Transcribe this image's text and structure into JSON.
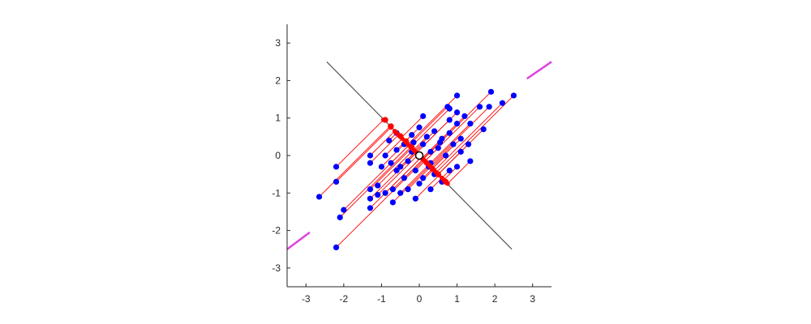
{
  "chart_data": {
    "type": "scatter",
    "title": "",
    "xlabel": "",
    "ylabel": "",
    "xlim": [
      -3.5,
      3.5
    ],
    "ylim": [
      -3.5,
      3.5
    ],
    "xticks": [
      "-3",
      "-2",
      "-1",
      "0",
      "1",
      "2",
      "3"
    ],
    "yticks": [
      "-3",
      "-2",
      "-1",
      "0",
      "1",
      "2",
      "3"
    ],
    "grid": false,
    "legend": "none",
    "colors": {
      "points": "#0000ff",
      "projections": "#ff0000",
      "projection_lines": "#ff0000",
      "perpendicular_axis": "#555555",
      "principal_axis": "#e040e0",
      "mean": "#ffffff"
    },
    "principal_axis": {
      "segments": [
        {
          "x": [
            -3.5,
            -2.9
          ],
          "y": [
            -2.5,
            -2.05
          ]
        },
        {
          "x": [
            2.85,
            3.5
          ],
          "y": [
            2.05,
            2.5
          ]
        }
      ]
    },
    "perpendicular_axis": {
      "x": [
        -2.45,
        2.45
      ],
      "y": [
        2.5,
        -2.5
      ]
    },
    "mean": {
      "x": 0.0,
      "y": 0.0
    },
    "points": [
      {
        "x": -2.2,
        "y": -2.45
      },
      {
        "x": -2.65,
        "y": -1.1
      },
      {
        "x": -2.1,
        "y": -1.65
      },
      {
        "x": -2.0,
        "y": -1.45
      },
      {
        "x": -2.2,
        "y": -0.7
      },
      {
        "x": -2.2,
        "y": -0.3
      },
      {
        "x": -1.3,
        "y": -1.4
      },
      {
        "x": -1.3,
        "y": -1.15
      },
      {
        "x": -1.3,
        "y": -0.9
      },
      {
        "x": -1.1,
        "y": -1.05
      },
      {
        "x": -1.1,
        "y": -0.8
      },
      {
        "x": -0.9,
        "y": -1.0
      },
      {
        "x": -0.7,
        "y": -1.25
      },
      {
        "x": -0.7,
        "y": -0.9
      },
      {
        "x": -0.5,
        "y": -1.0
      },
      {
        "x": -0.3,
        "y": -0.9
      },
      {
        "x": -0.1,
        "y": -1.15
      },
      {
        "x": 0.0,
        "y": -0.75
      },
      {
        "x": 0.3,
        "y": -0.9
      },
      {
        "x": -1.3,
        "y": -0.2
      },
      {
        "x": -1.3,
        "y": 0.0
      },
      {
        "x": -1.0,
        "y": -0.3
      },
      {
        "x": -0.9,
        "y": 0.0
      },
      {
        "x": -0.75,
        "y": -0.2
      },
      {
        "x": -0.6,
        "y": -0.4
      },
      {
        "x": -0.4,
        "y": -0.6
      },
      {
        "x": -0.3,
        "y": -0.15
      },
      {
        "x": -0.1,
        "y": -0.4
      },
      {
        "x": 0.1,
        "y": -0.6
      },
      {
        "x": 0.25,
        "y": -0.3
      },
      {
        "x": 0.4,
        "y": -0.5
      },
      {
        "x": 0.6,
        "y": -0.7
      },
      {
        "x": 0.8,
        "y": -0.4
      },
      {
        "x": 1.0,
        "y": -0.3
      },
      {
        "x": 1.35,
        "y": -0.15
      },
      {
        "x": -0.6,
        "y": 0.15
      },
      {
        "x": -0.4,
        "y": 0.3
      },
      {
        "x": -0.2,
        "y": 0.1
      },
      {
        "x": 0.1,
        "y": 0.3
      },
      {
        "x": 0.3,
        "y": 0.1
      },
      {
        "x": 0.5,
        "y": 0.2
      },
      {
        "x": 0.7,
        "y": 0.0
      },
      {
        "x": 0.9,
        "y": 0.3
      },
      {
        "x": 1.1,
        "y": 0.1
      },
      {
        "x": 1.3,
        "y": 0.3
      },
      {
        "x": 1.1,
        "y": 0.45
      },
      {
        "x": -0.6,
        "y": 0.6
      },
      {
        "x": -0.2,
        "y": 0.55
      },
      {
        "x": 0.0,
        "y": 0.75
      },
      {
        "x": 0.1,
        "y": 1.05
      },
      {
        "x": 0.4,
        "y": 0.65
      },
      {
        "x": 0.6,
        "y": 0.45
      },
      {
        "x": 0.8,
        "y": 0.6
      },
      {
        "x": 0.8,
        "y": 0.95
      },
      {
        "x": 0.8,
        "y": 1.25
      },
      {
        "x": 1.0,
        "y": 0.85
      },
      {
        "x": 1.0,
        "y": 1.15
      },
      {
        "x": 1.2,
        "y": 1.05
      },
      {
        "x": 1.35,
        "y": 0.85
      },
      {
        "x": 1.0,
        "y": 1.6
      },
      {
        "x": 1.6,
        "y": 1.3
      },
      {
        "x": 1.9,
        "y": 1.7
      },
      {
        "x": 1.85,
        "y": 1.3
      },
      {
        "x": 2.2,
        "y": 1.4
      },
      {
        "x": 2.5,
        "y": 1.6
      },
      {
        "x": 1.7,
        "y": 0.7
      },
      {
        "x": 0.75,
        "y": 1.3
      },
      {
        "x": -0.5,
        "y": -0.3
      },
      {
        "x": 0.3,
        "y": -0.2
      },
      {
        "x": -0.15,
        "y": 0.35
      },
      {
        "x": 0.55,
        "y": 0.35
      },
      {
        "x": -0.8,
        "y": 0.4
      },
      {
        "x": 0.2,
        "y": 0.5
      }
    ],
    "projections": [
      {
        "x": -0.9,
        "y": 0.95
      },
      {
        "x": -0.75,
        "y": 0.78
      },
      {
        "x": -0.5,
        "y": 0.52
      },
      {
        "x": -0.35,
        "y": 0.38
      },
      {
        "x": -0.2,
        "y": 0.22
      },
      {
        "x": 0.2,
        "y": -0.2
      },
      {
        "x": 0.35,
        "y": -0.36
      },
      {
        "x": 0.5,
        "y": -0.5
      },
      {
        "x": 0.7,
        "y": -0.7
      }
    ]
  }
}
